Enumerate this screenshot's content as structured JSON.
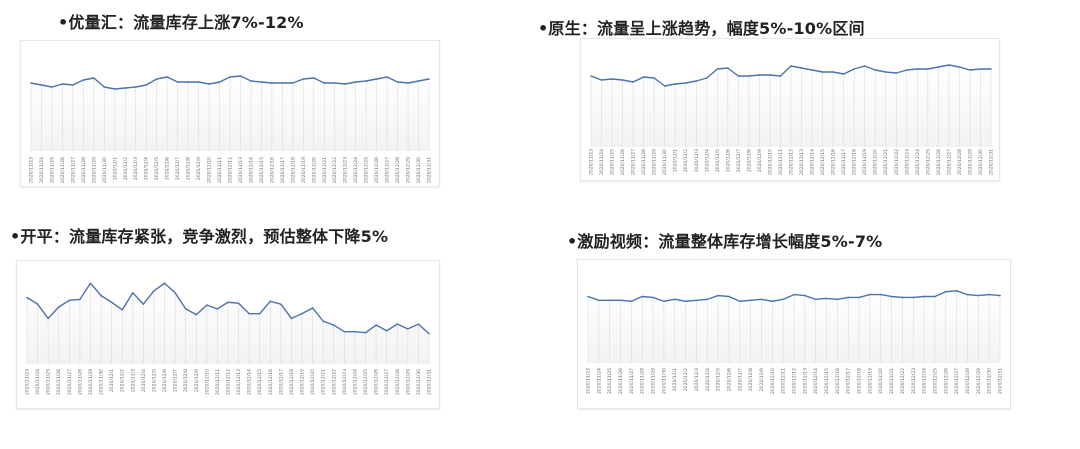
{
  "chart_data": [
    {
      "type": "line",
      "title": "•优量汇：流量库存上涨7%-12%",
      "color": "#4a72b0",
      "categories": [
        "2020/11/23",
        "2020/11/24",
        "2020/11/25",
        "2020/11/26",
        "2020/11/27",
        "2020/11/28",
        "2020/11/29",
        "2020/11/30",
        "2020/12/1",
        "2020/12/2",
        "2020/12/3",
        "2020/12/4",
        "2020/12/5",
        "2020/12/6",
        "2020/12/7",
        "2020/12/8",
        "2020/12/9",
        "2020/12/10",
        "2020/12/11",
        "2020/12/12",
        "2020/12/13",
        "2020/12/14",
        "2020/12/15",
        "2020/12/16",
        "2020/12/17",
        "2020/12/18",
        "2020/12/19",
        "2020/12/20",
        "2020/12/21",
        "2020/12/22",
        "2020/12/23",
        "2020/12/24",
        "2020/12/25",
        "2020/12/26",
        "2020/12/27",
        "2020/12/28",
        "2020/12/29",
        "2020/12/30",
        "2020/12/31"
      ],
      "values": [
        68,
        66,
        64,
        67,
        66,
        71,
        73,
        64,
        62,
        63,
        64,
        66,
        72,
        74,
        69,
        69,
        69,
        67,
        69,
        74,
        75,
        70,
        69,
        68,
        68,
        68,
        72,
        73,
        68,
        68,
        67,
        69,
        70,
        72,
        74,
        69,
        68,
        70,
        72
      ],
      "ylim": [
        0,
        100
      ]
    },
    {
      "type": "line",
      "title": "•原生：流量呈上涨趋势，幅度5%-10%区间",
      "color": "#4a72b0",
      "categories": [
        "2020/11/23",
        "2020/11/24",
        "2020/11/25",
        "2020/11/26",
        "2020/11/27",
        "2020/11/28",
        "2020/11/29",
        "2020/11/30",
        "2020/12/1",
        "2020/12/2",
        "2020/12/3",
        "2020/12/4",
        "2020/12/5",
        "2020/12/6",
        "2020/12/7",
        "2020/12/8",
        "2020/12/9",
        "2020/12/10",
        "2020/12/11",
        "2020/12/12",
        "2020/12/13",
        "2020/12/14",
        "2020/12/15",
        "2020/12/16",
        "2020/12/17",
        "2020/12/18",
        "2020/12/19",
        "2020/12/20",
        "2020/12/21",
        "2020/12/22",
        "2020/12/23",
        "2020/12/24",
        "2020/12/25",
        "2020/12/26",
        "2020/12/27",
        "2020/12/28",
        "2020/12/29",
        "2020/12/30",
        "2020/12/31"
      ],
      "values": [
        71,
        67,
        68,
        67,
        65,
        70,
        69,
        61,
        63,
        64,
        66,
        69,
        78,
        79,
        71,
        71,
        72,
        72,
        71,
        81,
        79,
        77,
        75,
        75,
        73,
        78,
        81,
        77,
        75,
        74,
        77,
        78,
        78,
        80,
        82,
        80,
        77,
        78,
        78
      ],
      "ylim": [
        0,
        100
      ]
    },
    {
      "type": "line",
      "title": "•开平：流量库存紧张，竞争激烈，预估整体下降5%",
      "color": "#4a72b0",
      "categories": [
        "2020/11/23",
        "2020/11/24",
        "2020/11/25",
        "2020/11/26",
        "2020/11/27",
        "2020/11/28",
        "2020/11/29",
        "2020/11/30",
        "2020/12/1",
        "2020/12/2",
        "2020/12/3",
        "2020/12/4",
        "2020/12/5",
        "2020/12/6",
        "2020/12/7",
        "2020/12/8",
        "2020/12/9",
        "2020/12/10",
        "2020/12/11",
        "2020/12/12",
        "2020/12/13",
        "2020/12/14",
        "2020/12/15",
        "2020/12/16",
        "2020/12/17",
        "2020/12/18",
        "2020/12/19",
        "2020/12/20",
        "2020/12/21",
        "2020/12/22",
        "2020/12/23",
        "2020/12/24",
        "2020/12/25",
        "2020/12/26",
        "2020/12/27",
        "2020/12/28",
        "2020/12/29",
        "2020/12/30",
        "2020/12/31"
      ],
      "values": [
        70,
        63,
        48,
        60,
        67,
        68,
        85,
        72,
        65,
        57,
        75,
        63,
        77,
        85,
        75,
        58,
        52,
        62,
        58,
        65,
        64,
        53,
        53,
        66,
        63,
        48,
        53,
        59,
        45,
        41,
        34,
        34,
        33,
        41,
        35,
        42,
        37,
        42,
        32
      ],
      "ylim": [
        0,
        100
      ]
    },
    {
      "type": "line",
      "title": "•激励视频：流量整体库存增长幅度5%-7%",
      "color": "#4a72b0",
      "categories": [
        "2020/11/23",
        "2020/11/24",
        "2020/11/25",
        "2020/11/26",
        "2020/11/27",
        "2020/11/28",
        "2020/11/29",
        "2020/11/30",
        "2020/12/1",
        "2020/12/2",
        "2020/12/3",
        "2020/12/4",
        "2020/12/5",
        "2020/12/6",
        "2020/12/7",
        "2020/12/8",
        "2020/12/9",
        "2020/12/10",
        "2020/12/11",
        "2020/12/12",
        "2020/12/13",
        "2020/12/14",
        "2020/12/15",
        "2020/12/16",
        "2020/12/17",
        "2020/12/18",
        "2020/12/19",
        "2020/12/20",
        "2020/12/21",
        "2020/12/22",
        "2020/12/23",
        "2020/12/24",
        "2020/12/25",
        "2020/12/26",
        "2020/12/27",
        "2020/12/28",
        "2020/12/29",
        "2020/12/30",
        "2020/12/31"
      ],
      "values": [
        70,
        66,
        66,
        66,
        65,
        70,
        69,
        65,
        67,
        65,
        66,
        67,
        71,
        70,
        65,
        66,
        67,
        65,
        67,
        72,
        71,
        67,
        68,
        67,
        69,
        69,
        72,
        72,
        70,
        69,
        69,
        70,
        70,
        75,
        76,
        72,
        71,
        72,
        71
      ],
      "ylim": [
        0,
        100
      ]
    }
  ]
}
